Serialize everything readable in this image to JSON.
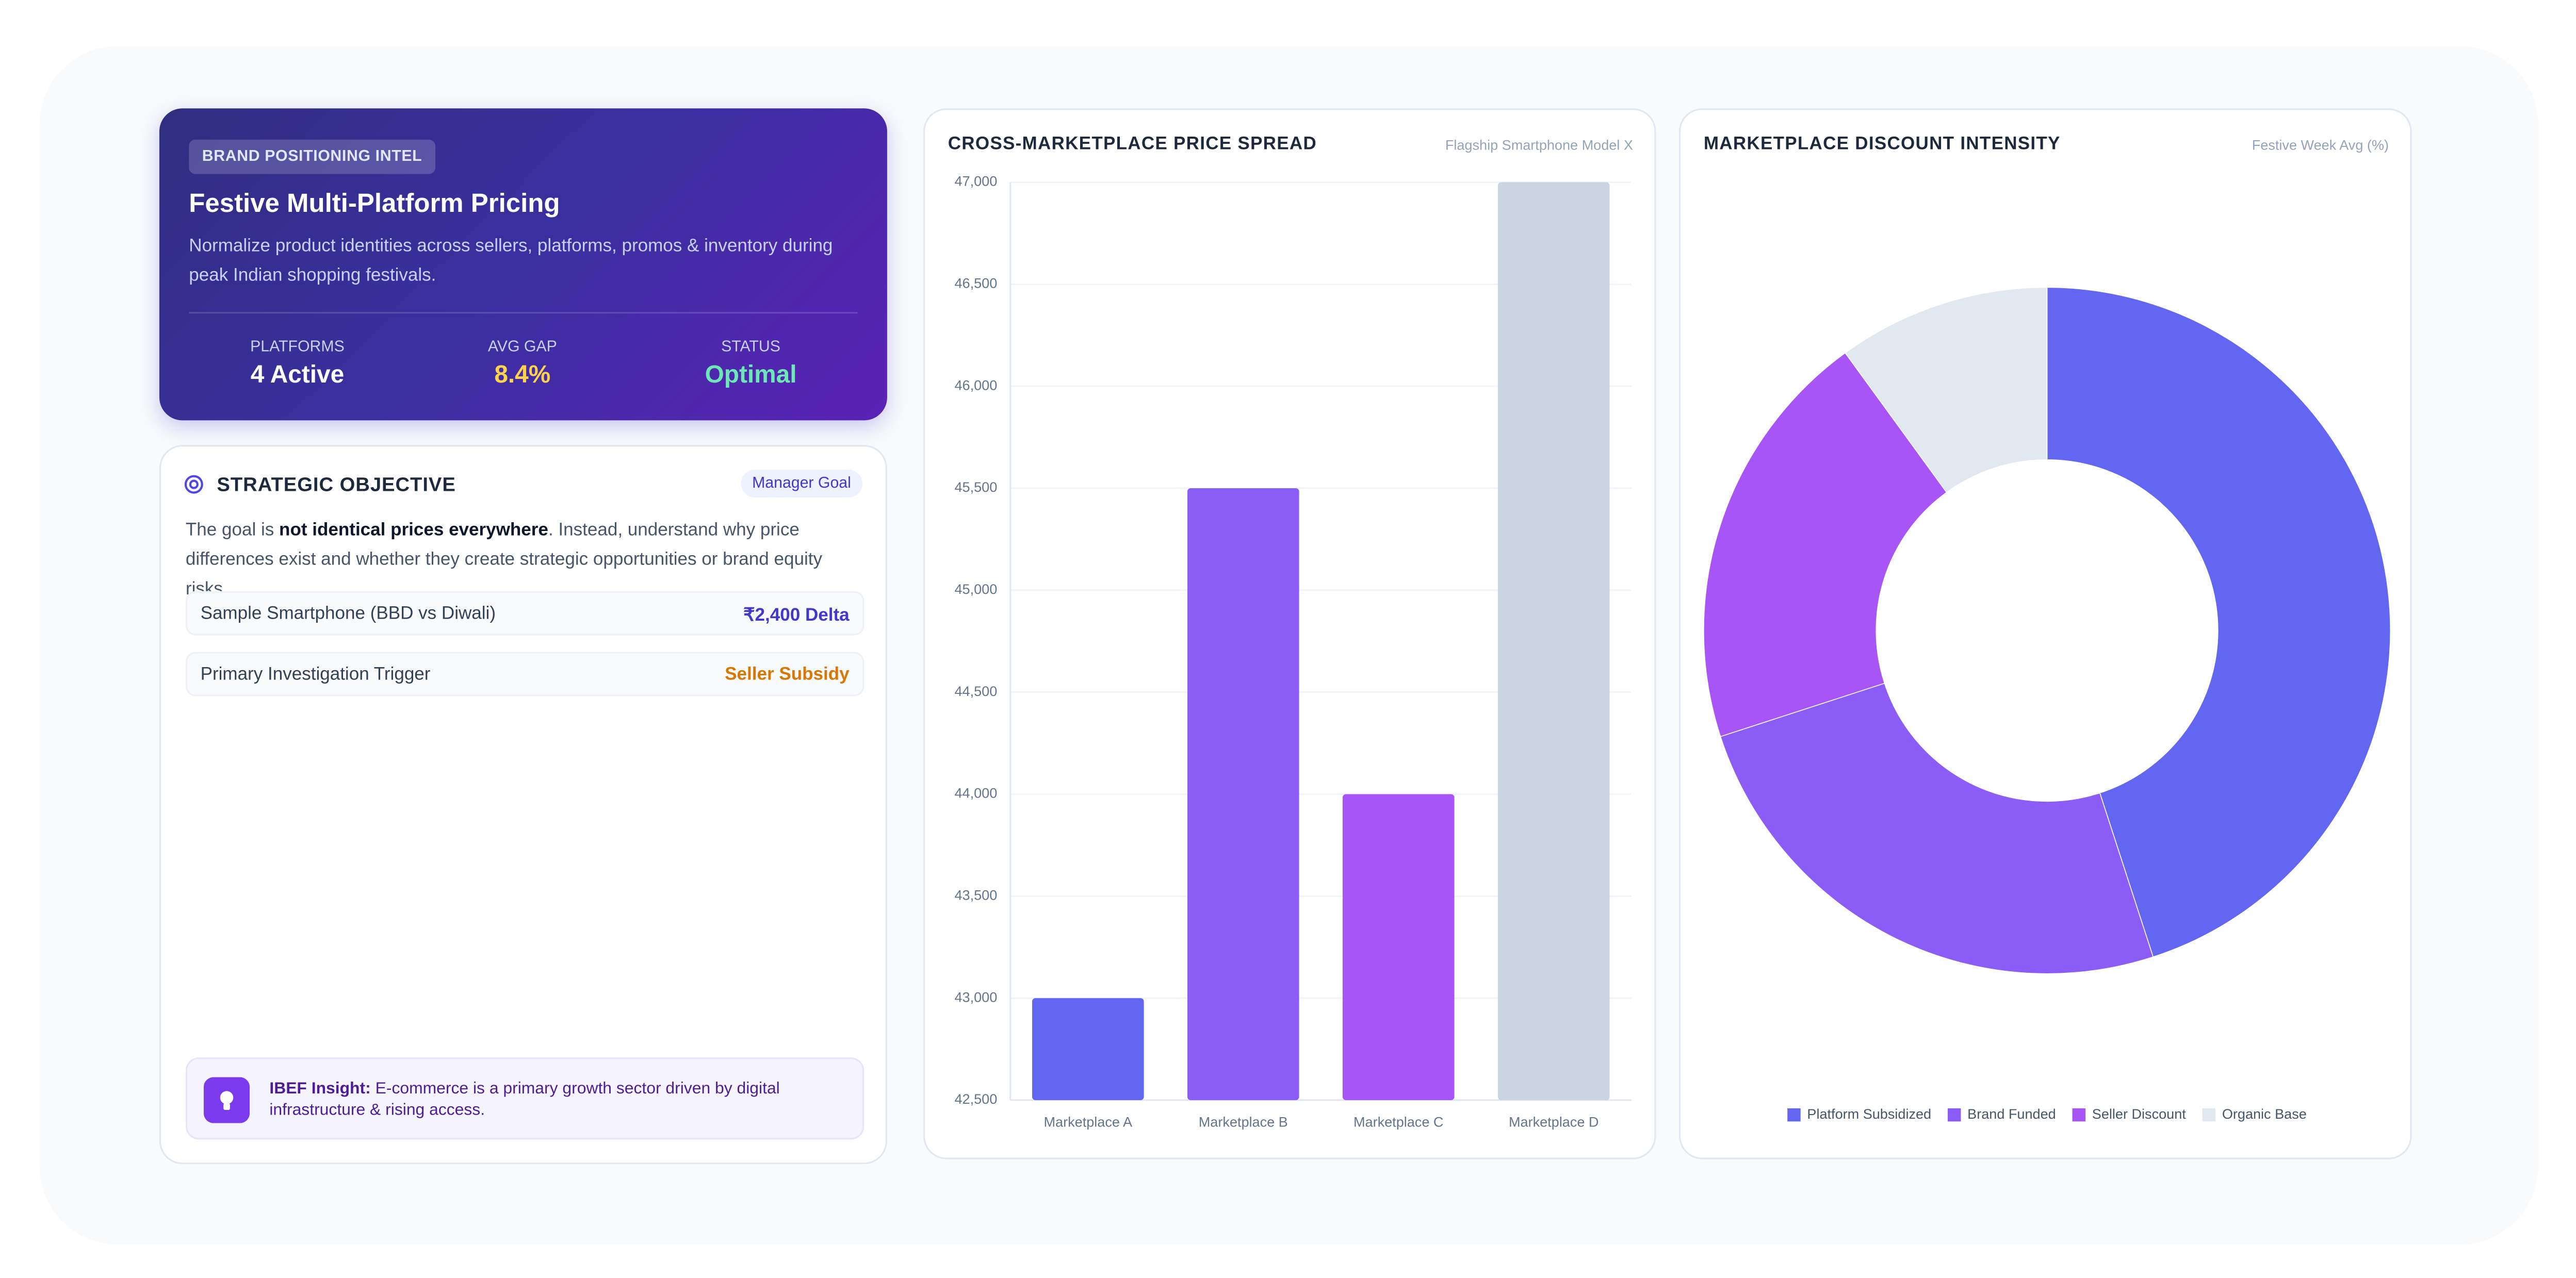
{
  "brand_card": {
    "badge": "BRAND POSITIONING INTEL",
    "title": "Festive Multi-Platform Pricing",
    "description": "Normalize product identities across sellers, platforms, promos & inventory during peak Indian shopping festivals.",
    "stats": [
      {
        "label": "PLATFORMS",
        "value": "4 Active"
      },
      {
        "label": "AVG GAP",
        "value": "8.4%"
      },
      {
        "label": "STATUS",
        "value": "Optimal"
      }
    ]
  },
  "objective": {
    "title": "STRATEGIC OBJECTIVE",
    "tag": "Manager Goal",
    "text_parts": [
      "The goal is ",
      "not identical prices everywhere",
      ". Instead, understand why price differences exist and whether they create strategic opportunities or brand equity risks."
    ],
    "rows": [
      {
        "label": "Sample Smartphone (BBD vs Diwali)",
        "value": "₹2,400 Delta"
      },
      {
        "label": "Primary Investigation Trigger",
        "value": "Seller Subsidy"
      }
    ],
    "insight": {
      "label": "IBEF Insight:",
      "text": " E-commerce is a primary growth sector driven by digital infrastructure & rising access."
    }
  },
  "chart_data": [
    {
      "type": "bar",
      "title": "CROSS-MARKETPLACE PRICE SPREAD",
      "subtitle": "Flagship Smartphone Model X",
      "categories": [
        "Marketplace A",
        "Marketplace B",
        "Marketplace C",
        "Marketplace D"
      ],
      "values": [
        43000,
        45500,
        44000,
        47000
      ],
      "colors": [
        "#6366f1",
        "#8b5cf6",
        "#a855f7",
        "#cbd5e1"
      ],
      "ylim": [
        42500,
        47000
      ],
      "yticks": [
        {
          "value": 42500,
          "label": "42,500"
        },
        {
          "value": 43000,
          "label": "43,000"
        },
        {
          "value": 43500,
          "label": "43,500"
        },
        {
          "value": 44000,
          "label": "44,000"
        },
        {
          "value": 44500,
          "label": "44,500"
        },
        {
          "value": 45000,
          "label": "45,000"
        },
        {
          "value": 45500,
          "label": "45,500"
        },
        {
          "value": 46000,
          "label": "46,000"
        },
        {
          "value": 46500,
          "label": "46,500"
        },
        {
          "value": 47000,
          "label": "47,000"
        }
      ],
      "grid": true
    },
    {
      "type": "doughnut",
      "title": "MARKETPLACE DISCOUNT INTENSITY",
      "subtitle": "Festive Week Avg (%)",
      "categories": [
        "Platform Subsidized",
        "Brand Funded",
        "Seller Discount",
        "Organic Base"
      ],
      "values": [
        45,
        25,
        20,
        10
      ],
      "colors": [
        "#6366f1",
        "#8b5cf6",
        "#a855f7",
        "#e2e8f0"
      ],
      "legend": "bottom"
    }
  ]
}
